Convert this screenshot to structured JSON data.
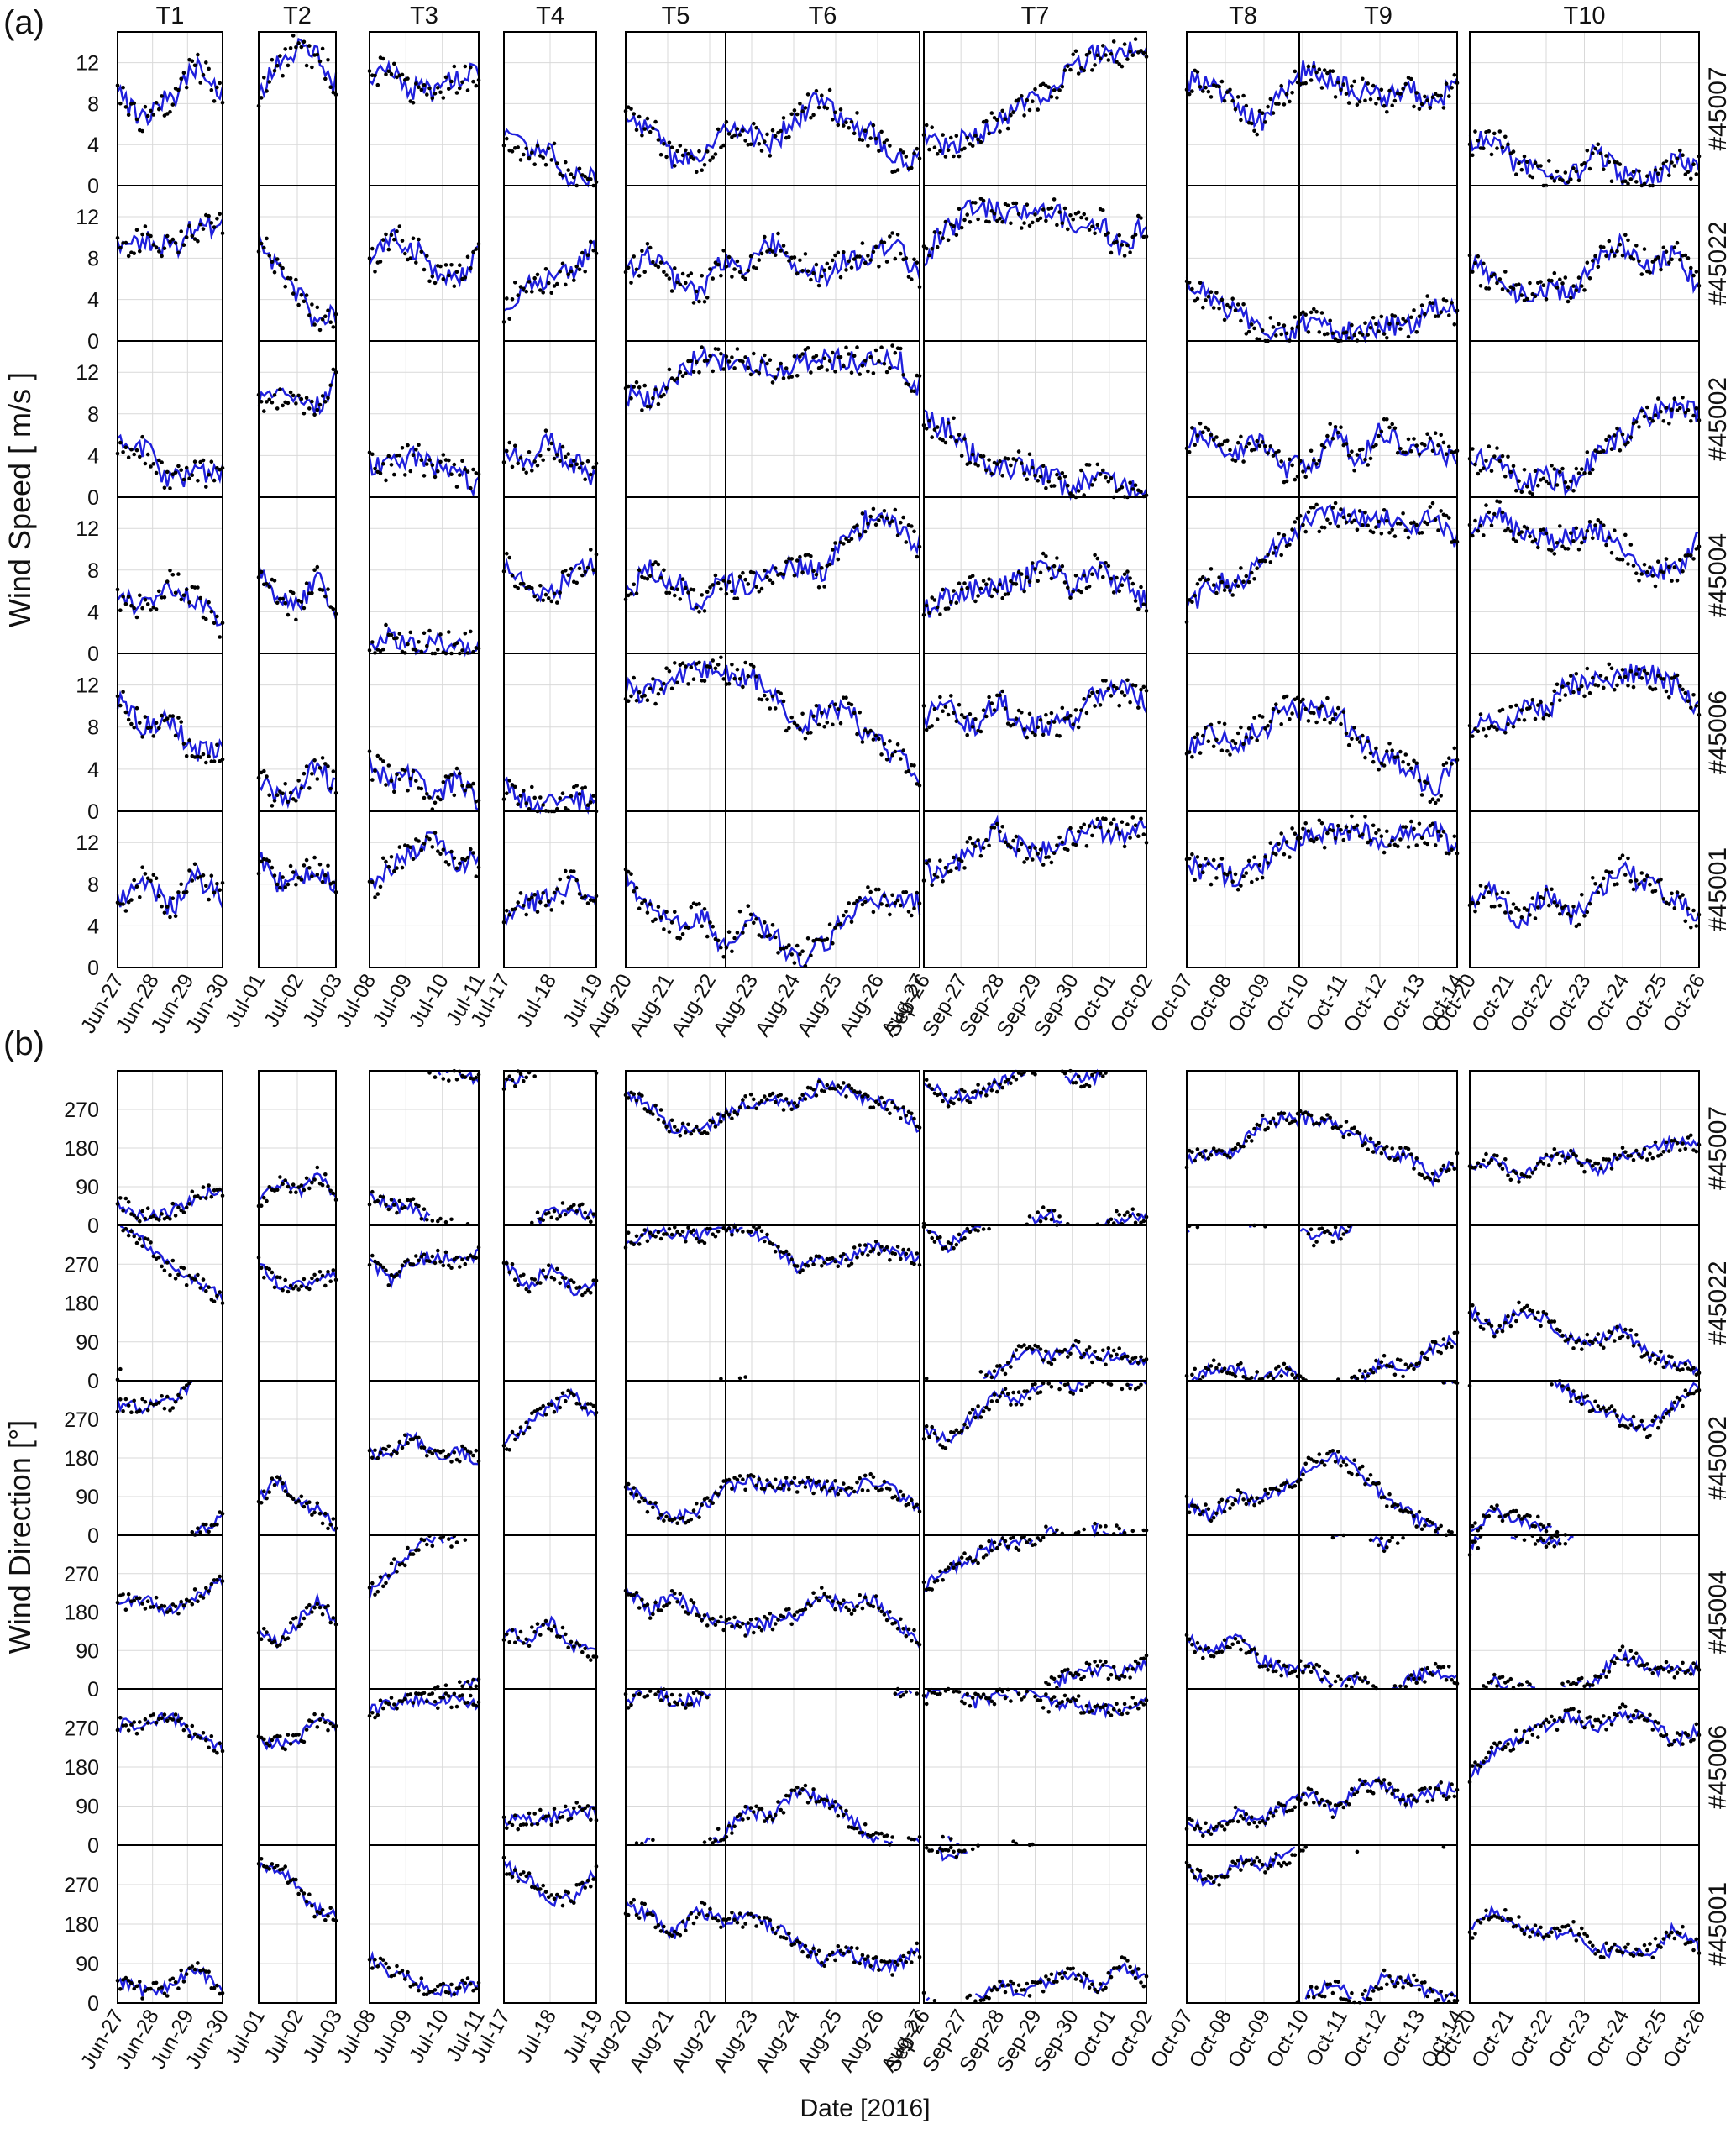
{
  "figure": {
    "panel_a_label": "(a)",
    "panel_b_label": "(b)",
    "xlabel": "Date [2016]"
  },
  "colors": {
    "model_line": "#1f1fdc",
    "observation_dots": "#000000",
    "grid": "#d9d9d9",
    "frame": "#000000"
  },
  "chart_data": [
    {
      "type": "line",
      "panel": "(a)",
      "ylabel": "Wind Speed [ m/s ]",
      "ylim": [
        0,
        15
      ],
      "yticks": [
        "0",
        "4",
        "8",
        "12"
      ],
      "grid": true,
      "stations": [
        "#45007",
        "#45022",
        "#45002",
        "#45004",
        "#45006",
        "#45001"
      ],
      "series": [
        {
          "name": "",
          "kind": "model line",
          "color": "#1f1fdc"
        },
        {
          "name": "",
          "kind": "buoy observations (dots)",
          "color": "#000000"
        }
      ],
      "period_groups": [
        {
          "periods": [
            {
              "label": "T1"
            }
          ],
          "x_ticks": [
            "Jun-27",
            "Jun-28",
            "Jun-29",
            "Jun-30"
          ]
        },
        {
          "periods": [
            {
              "label": "T2"
            }
          ],
          "x_ticks": [
            "Jul-01",
            "Jul-02",
            "Jul-03"
          ]
        },
        {
          "periods": [
            {
              "label": "T3"
            }
          ],
          "x_ticks": [
            "Jul-08",
            "Jul-09",
            "Jul-10",
            "Jul-11"
          ]
        },
        {
          "periods": [
            {
              "label": "T4"
            }
          ],
          "x_ticks": [
            "Jul-17",
            "Jul-18",
            "Jul-19"
          ]
        },
        {
          "periods": [
            {
              "label": "T5"
            },
            {
              "label": "T6"
            }
          ],
          "x_ticks": [
            "Aug-20",
            "Aug-21",
            "Aug-22",
            "Aug-23",
            "Aug-24",
            "Aug-25",
            "Aug-26",
            "Aug-27"
          ]
        },
        {
          "periods": [
            {
              "label": "T7"
            }
          ],
          "x_ticks": [
            "Sep-26",
            "Sep-27",
            "Sep-28",
            "Sep-29",
            "Sep-30",
            "Oct-01",
            "Oct-02"
          ]
        },
        {
          "periods": [
            {
              "label": "T8"
            },
            {
              "label": "T9"
            }
          ],
          "x_ticks": [
            "Oct-07",
            "Oct-08",
            "Oct-09",
            "Oct-10",
            "Oct-11",
            "Oct-12",
            "Oct-13",
            "Oct-14"
          ]
        },
        {
          "periods": [
            {
              "label": "T10"
            }
          ],
          "x_ticks": [
            "Oct-20",
            "Oct-21",
            "Oct-22",
            "Oct-23",
            "Oct-24",
            "Oct-25",
            "Oct-26"
          ]
        }
      ]
    },
    {
      "type": "line",
      "panel": "(b)",
      "ylabel": "Wind Direction [°]",
      "ylim": [
        0,
        360
      ],
      "yticks": [
        "0",
        "90",
        "180",
        "270"
      ],
      "grid": true,
      "stations": [
        "#45007",
        "#45022",
        "#45002",
        "#45004",
        "#45006",
        "#45001"
      ],
      "series": [
        {
          "name": "",
          "kind": "model line",
          "color": "#1f1fdc"
        },
        {
          "name": "",
          "kind": "buoy observations (dots)",
          "color": "#000000"
        }
      ]
    }
  ]
}
